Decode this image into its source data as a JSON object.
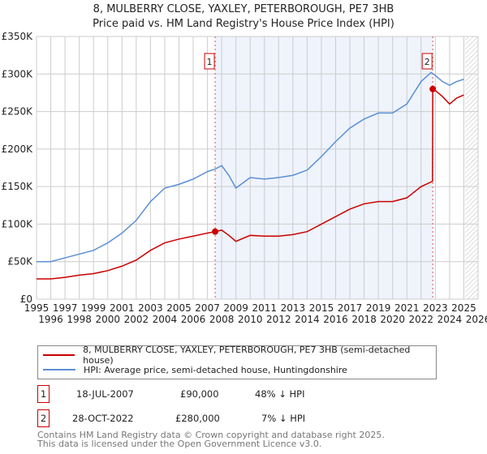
{
  "title": "8, MULBERRY CLOSE, YAXLEY, PETERBOROUGH, PE7 3HB",
  "subtitle": "Price paid vs. HM Land Registry's House Price Index (HPI)",
  "chart_data": {
    "type": "line",
    "xlim": [
      1995,
      2026
    ],
    "ylim": [
      0,
      350000
    ],
    "yticks": [
      {
        "v": 0,
        "l": "£0"
      },
      {
        "v": 50000,
        "l": "£50K"
      },
      {
        "v": 100000,
        "l": "£100K"
      },
      {
        "v": 150000,
        "l": "£150K"
      },
      {
        "v": 200000,
        "l": "£200K"
      },
      {
        "v": 250000,
        "l": "£250K"
      },
      {
        "v": 300000,
        "l": "£300K"
      },
      {
        "v": 350000,
        "l": "£350K"
      }
    ],
    "xticks": [
      "1995",
      "1996",
      "1997",
      "1998",
      "1999",
      "2000",
      "2001",
      "2002",
      "2003",
      "2004",
      "2005",
      "2006",
      "2007",
      "2008",
      "2009",
      "2010",
      "2011",
      "2012",
      "2013",
      "2014",
      "2015",
      "2016",
      "2017",
      "2018",
      "2019",
      "2020",
      "2021",
      "2022",
      "2023",
      "2024",
      "2025",
      "2026"
    ],
    "series": [
      {
        "name": "8, MULBERRY CLOSE, YAXLEY, PETERBOROUGH, PE7 3HB (semi-detached house)",
        "color": "#cc0000",
        "x": [
          1995,
          1996,
          1997,
          1998,
          1999,
          2000,
          2001,
          2002,
          2003,
          2004,
          2005,
          2006,
          2007,
          2007.54,
          2008,
          2008.5,
          2009,
          2010,
          2011,
          2012,
          2013,
          2014,
          2015,
          2016,
          2017,
          2018,
          2019,
          2020,
          2021,
          2022,
          2022.8,
          2022.82,
          2023,
          2023.5,
          2024,
          2024.5,
          2025
        ],
        "y": [
          27000,
          27000,
          29000,
          32000,
          34000,
          38000,
          44000,
          52000,
          65000,
          75000,
          80000,
          84000,
          88000,
          90000,
          92000,
          85000,
          77000,
          85000,
          84000,
          84000,
          86000,
          90000,
          100000,
          110000,
          120000,
          127000,
          130000,
          130000,
          135000,
          150000,
          157000,
          280000,
          278000,
          270000,
          260000,
          268000,
          272000
        ]
      },
      {
        "name": "HPI: Average price, semi-detached house, Huntingdonshire",
        "color": "#5b8fd6",
        "x": [
          1995,
          1996,
          1997,
          1998,
          1999,
          2000,
          2001,
          2002,
          2003,
          2004,
          2005,
          2006,
          2007,
          2007.5,
          2008,
          2008.5,
          2009,
          2009.5,
          2010,
          2011,
          2012,
          2013,
          2014,
          2015,
          2016,
          2017,
          2018,
          2019,
          2020,
          2021,
          2022,
          2022.7,
          2023,
          2023.5,
          2024,
          2024.5,
          2025
        ],
        "y": [
          50000,
          50000,
          55000,
          60000,
          65000,
          75000,
          88000,
          105000,
          130000,
          148000,
          153000,
          160000,
          170000,
          173000,
          178000,
          165000,
          148000,
          155000,
          162000,
          160000,
          162000,
          165000,
          172000,
          190000,
          210000,
          228000,
          240000,
          248000,
          248000,
          260000,
          290000,
          302000,
          298000,
          290000,
          285000,
          290000,
          293000
        ]
      }
    ],
    "sales": [
      {
        "label": "1",
        "x": 2007.54,
        "y": 90000
      },
      {
        "label": "2",
        "x": 2022.82,
        "y": 280000
      }
    ],
    "shaded_range": [
      2007.54,
      2022.82
    ],
    "hatched_from": 2025.1
  },
  "legend": {
    "red": "8, MULBERRY CLOSE, YAXLEY, PETERBOROUGH, PE7 3HB (semi-detached house)",
    "blue": "HPI: Average price, semi-detached house, Huntingdonshire"
  },
  "transactions": [
    {
      "num": "1",
      "date": "18-JUL-2007",
      "price": "£90,000",
      "hpi": "48% ↓ HPI"
    },
    {
      "num": "2",
      "date": "28-OCT-2022",
      "price": "£280,000",
      "hpi": "7% ↓ HPI"
    }
  ],
  "footer": [
    "Contains HM Land Registry data © Crown copyright and database right 2025.",
    "This data is licensed under the Open Government Licence v3.0."
  ]
}
